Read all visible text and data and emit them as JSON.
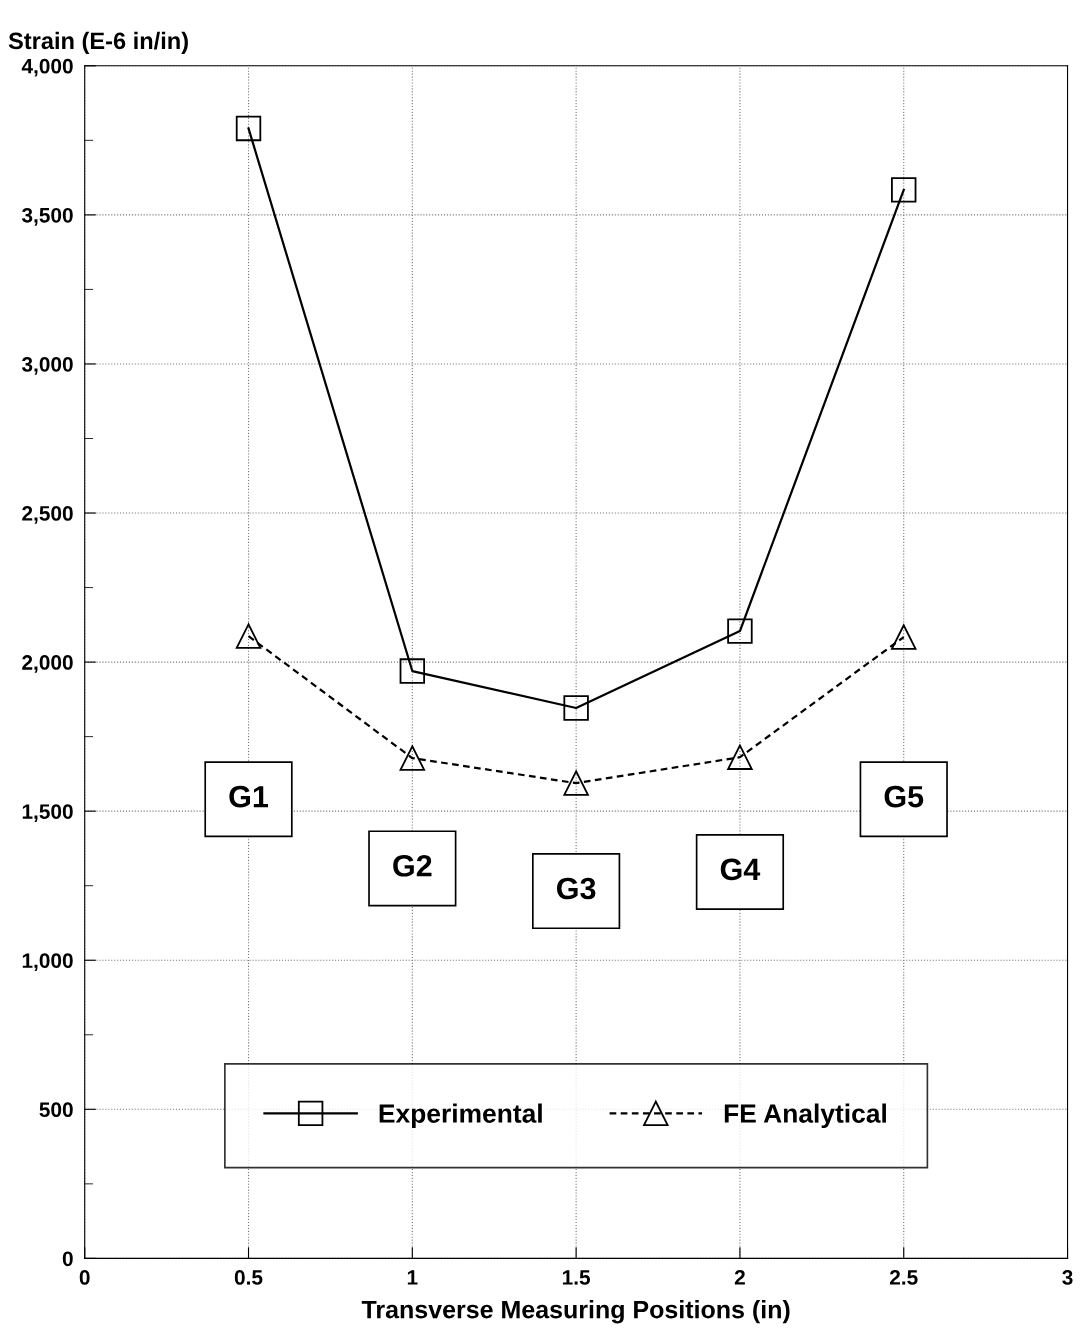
{
  "chart_data": {
    "type": "line",
    "xlabel": "Transverse Measuring Positions (in)",
    "ylabel": "Strain (E-6 in/in)",
    "x": [
      0.5,
      1,
      1.5,
      2,
      2.5
    ],
    "series": [
      {
        "name": "Experimental",
        "color": "#000000",
        "values": [
          3790,
          1970,
          1846,
          2104,
          3584
        ],
        "marker": "square",
        "line_style": "solid"
      },
      {
        "name": "FE Analytical",
        "color": "#000000",
        "values": [
          2087,
          1678,
          1594,
          1681,
          2084
        ],
        "marker": "triangle",
        "line_style": "dashed"
      }
    ],
    "xlim": [
      0,
      3
    ],
    "xticks": [
      0,
      0.5,
      1,
      1.5,
      2,
      2.5,
      3
    ],
    "ylim": [
      0,
      4000
    ],
    "yticks": [
      0,
      500,
      {
        "value": 1000,
        "label": "1,000"
      },
      {
        "value": 1500,
        "label": "1,500"
      },
      {
        "value": 2000,
        "label": "2,000"
      },
      {
        "value": 2500,
        "label": "2,500"
      },
      {
        "value": 3000,
        "label": "3,000"
      },
      {
        "value": 3500,
        "label": "3,500"
      },
      {
        "value": 4000,
        "label": "4,000"
      }
    ],
    "grid": true,
    "legend": "bottom",
    "annotations": [
      "G1",
      "G2",
      "G3",
      "G4",
      "G5"
    ]
  }
}
